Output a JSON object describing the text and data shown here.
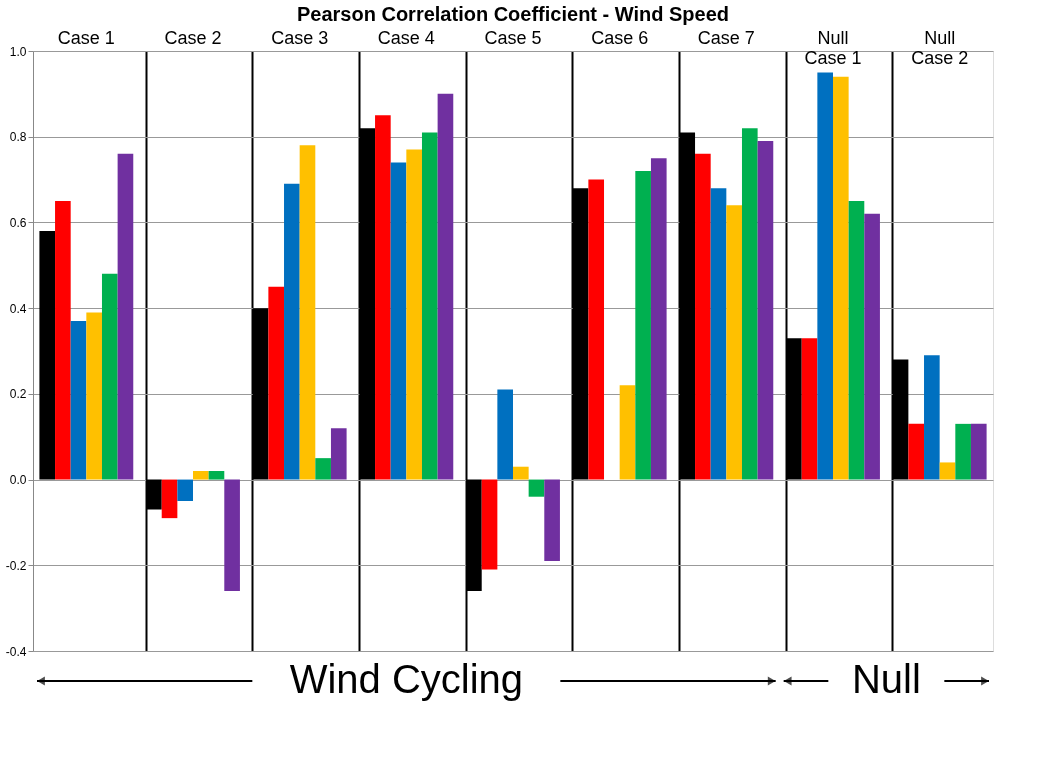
{
  "chart_data": {
    "type": "bar",
    "title": "Pearson Correlation Coefficient - Wind Speed",
    "categories": [
      "Case 1",
      "Case 2",
      "Case 3",
      "Case 4",
      "Case 5",
      "Case 6",
      "Case 7",
      "Null\nCase 1",
      "Null\nCase 2"
    ],
    "series": [
      {
        "color": "#000000",
        "values": [
          0.58,
          -0.07,
          0.4,
          0.82,
          -0.26,
          0.68,
          0.81,
          0.33,
          0.28
        ]
      },
      {
        "color": "#ff0000",
        "values": [
          0.65,
          -0.09,
          0.45,
          0.85,
          -0.21,
          0.7,
          0.76,
          0.33,
          0.13
        ]
      },
      {
        "color": "#0070c0",
        "values": [
          0.37,
          -0.05,
          0.69,
          0.74,
          0.21,
          null,
          0.68,
          0.95,
          0.29
        ]
      },
      {
        "color": "#ffc000",
        "values": [
          0.39,
          0.02,
          0.78,
          0.77,
          0.03,
          0.22,
          0.64,
          0.94,
          0.04
        ]
      },
      {
        "color": "#00b050",
        "values": [
          0.48,
          0.02,
          0.05,
          0.81,
          -0.04,
          0.72,
          0.82,
          0.65,
          0.13
        ]
      },
      {
        "color": "#7030a0",
        "values": [
          0.76,
          -0.26,
          0.12,
          0.9,
          -0.19,
          0.75,
          0.79,
          0.62,
          0.13
        ]
      }
    ],
    "ylim": [
      -0.4,
      1.0
    ],
    "yticks": [
      {
        "value": -0.4,
        "label": "-0.4"
      },
      {
        "value": -0.2,
        "label": "-0.2"
      },
      {
        "value": 0,
        "label": "0.0"
      },
      {
        "value": 0.2,
        "label": "0.2"
      },
      {
        "value": 0.4,
        "label": "0.4"
      },
      {
        "value": 0.6,
        "label": "0.6"
      },
      {
        "value": 0.8,
        "label": "0.8"
      },
      {
        "value": 1.0,
        "label": "1.0"
      }
    ],
    "grid": "y",
    "annotations": [
      "Wind Cycling",
      "Null"
    ]
  }
}
